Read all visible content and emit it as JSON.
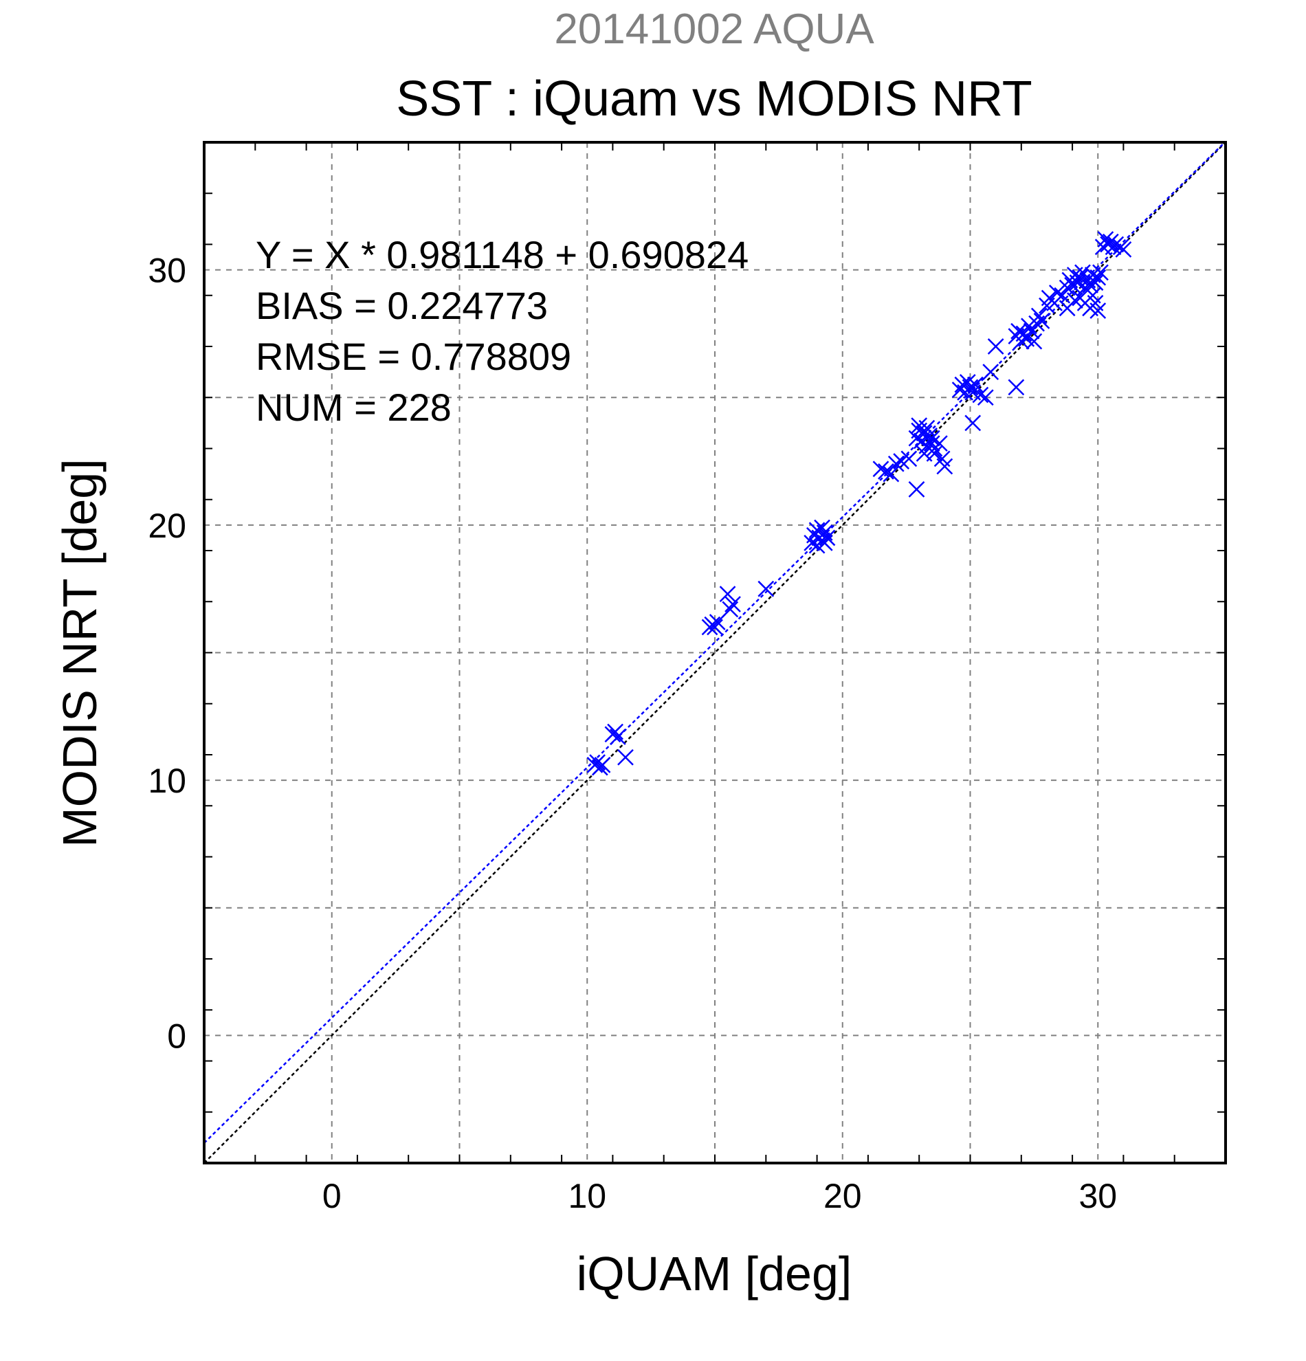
{
  "chart_data": {
    "type": "scatter",
    "title": "SST : iQuam vs MODIS NRT",
    "subtitle": "20141002 AQUA",
    "xlabel": "iQUAM [deg]",
    "ylabel": "MODIS NRT [deg]",
    "xlim": [
      -5,
      35
    ],
    "ylim": [
      -5,
      35
    ],
    "xticks": [
      0,
      10,
      20,
      30
    ],
    "yticks": [
      0,
      10,
      20,
      30
    ],
    "xtick_labels": [
      "0",
      "10",
      "20",
      "30"
    ],
    "ytick_labels": [
      "0",
      "10",
      "20",
      "30"
    ],
    "grid": true,
    "marker": "x",
    "marker_color": "#0000ff",
    "stats": [
      "Y = X * 0.981148 + 0.690824",
      "BIAS = 0.224773",
      "RMSE = 0.778809",
      "NUM = 228"
    ],
    "lines": [
      {
        "kind": "one-to-one",
        "slope": 1,
        "intercept": 0,
        "color": "#000000"
      },
      {
        "kind": "regression",
        "slope": 0.981148,
        "intercept": 0.690824,
        "color": "#0000ff"
      }
    ],
    "points": [
      [
        10.3,
        10.6
      ],
      [
        10.4,
        10.7
      ],
      [
        10.5,
        10.5
      ],
      [
        10.6,
        10.6
      ],
      [
        11.0,
        11.8
      ],
      [
        11.1,
        11.9
      ],
      [
        11.2,
        11.7
      ],
      [
        11.5,
        10.9
      ],
      [
        14.8,
        16.0
      ],
      [
        14.9,
        16.1
      ],
      [
        15.0,
        16.0
      ],
      [
        15.1,
        16.2
      ],
      [
        15.5,
        17.3
      ],
      [
        15.6,
        16.7
      ],
      [
        15.7,
        16.9
      ],
      [
        17.0,
        17.5
      ],
      [
        18.8,
        19.3
      ],
      [
        18.9,
        19.6
      ],
      [
        19.0,
        19.8
      ],
      [
        19.0,
        19.2
      ],
      [
        19.1,
        19.5
      ],
      [
        19.2,
        19.4
      ],
      [
        19.3,
        19.7
      ],
      [
        19.2,
        19.9
      ],
      [
        19.4,
        19.5
      ],
      [
        19.3,
        19.3
      ],
      [
        21.5,
        22.2
      ],
      [
        21.7,
        22.1
      ],
      [
        21.9,
        22.0
      ],
      [
        22.1,
        22.4
      ],
      [
        22.3,
        22.5
      ],
      [
        22.6,
        22.6
      ],
      [
        22.9,
        21.4
      ],
      [
        22.9,
        23.4
      ],
      [
        23.0,
        23.7
      ],
      [
        23.0,
        23.9
      ],
      [
        23.1,
        23.3
      ],
      [
        23.2,
        23.6
      ],
      [
        23.3,
        23.8
      ],
      [
        23.3,
        23.1
      ],
      [
        23.4,
        23.5
      ],
      [
        23.5,
        23.4
      ],
      [
        23.6,
        23.0
      ],
      [
        23.6,
        22.8
      ],
      [
        23.8,
        23.2
      ],
      [
        23.9,
        22.6
      ],
      [
        24.0,
        22.3
      ],
      [
        23.2,
        22.8
      ],
      [
        23.5,
        23.2
      ],
      [
        24.6,
        25.3
      ],
      [
        24.7,
        25.5
      ],
      [
        24.8,
        25.2
      ],
      [
        24.9,
        25.6
      ],
      [
        25.0,
        25.4
      ],
      [
        25.1,
        25.2
      ],
      [
        25.2,
        25.5
      ],
      [
        25.4,
        25.1
      ],
      [
        25.6,
        25.0
      ],
      [
        25.1,
        24.0
      ],
      [
        25.8,
        26.0
      ],
      [
        26.0,
        27.0
      ],
      [
        26.8,
        27.4
      ],
      [
        26.9,
        27.6
      ],
      [
        27.0,
        27.2
      ],
      [
        27.1,
        27.5
      ],
      [
        27.2,
        27.3
      ],
      [
        27.3,
        27.8
      ],
      [
        27.4,
        27.6
      ],
      [
        27.5,
        27.2
      ],
      [
        27.6,
        27.9
      ],
      [
        27.8,
        28.0
      ],
      [
        26.8,
        25.4
      ],
      [
        27.7,
        28.2
      ],
      [
        28.0,
        28.6
      ],
      [
        28.1,
        28.9
      ],
      [
        28.3,
        28.7
      ],
      [
        28.4,
        29.1
      ],
      [
        28.6,
        29.0
      ],
      [
        28.8,
        29.3
      ],
      [
        28.9,
        29.6
      ],
      [
        29.0,
        29.4
      ],
      [
        29.1,
        29.8
      ],
      [
        29.2,
        29.5
      ],
      [
        29.3,
        29.7
      ],
      [
        29.4,
        29.9
      ],
      [
        29.5,
        29.3
      ],
      [
        29.6,
        29.6
      ],
      [
        29.7,
        29.4
      ],
      [
        29.8,
        29.8
      ],
      [
        29.9,
        29.5
      ],
      [
        30.0,
        29.7
      ],
      [
        30.1,
        29.9
      ],
      [
        29.3,
        28.9
      ],
      [
        29.5,
        28.7
      ],
      [
        29.7,
        28.5
      ],
      [
        29.9,
        28.7
      ],
      [
        30.0,
        28.4
      ],
      [
        29.8,
        29.0
      ],
      [
        29.1,
        28.8
      ],
      [
        28.8,
        28.5
      ],
      [
        30.2,
        30.9
      ],
      [
        30.3,
        31.2
      ],
      [
        30.4,
        31.0
      ],
      [
        30.5,
        31.1
      ],
      [
        30.6,
        30.9
      ],
      [
        30.7,
        31.0
      ],
      [
        30.9,
        30.9
      ],
      [
        31.0,
        30.8
      ]
    ]
  }
}
